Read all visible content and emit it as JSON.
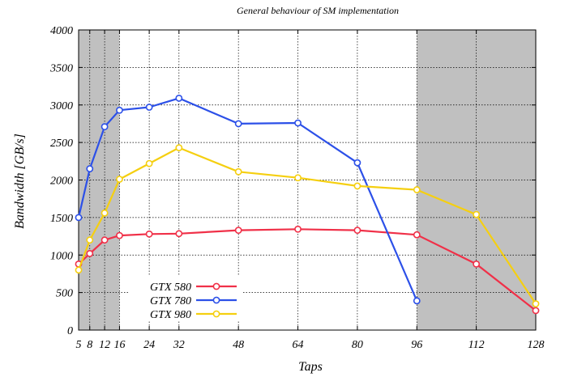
{
  "chart_data": {
    "type": "line",
    "title": "General behaviour of SM implementation",
    "xlabel": "Taps",
    "ylabel": "Bandwidth [GB/s]",
    "xlim": [
      5,
      128
    ],
    "ylim": [
      0,
      4000
    ],
    "xticks": [
      5,
      8,
      12,
      16,
      24,
      32,
      48,
      64,
      80,
      96,
      112,
      128
    ],
    "yticks": [
      0,
      500,
      1000,
      1500,
      2000,
      2500,
      3000,
      3500,
      4000
    ],
    "grid": true,
    "legend_position": "bottom-left",
    "shaded_regions": [
      [
        5,
        16
      ],
      [
        96,
        128
      ]
    ],
    "series": [
      {
        "name": "GTX 580",
        "color": "#f03048",
        "x": [
          5,
          8,
          12,
          16,
          24,
          32,
          48,
          64,
          80,
          96,
          112,
          128
        ],
        "values": [
          880,
          1020,
          1200,
          1260,
          1280,
          1285,
          1330,
          1345,
          1330,
          1270,
          880,
          260
        ]
      },
      {
        "name": "GTX 780",
        "color": "#2c50e8",
        "x": [
          5,
          8,
          12,
          16,
          24,
          32,
          48,
          64,
          80,
          96
        ],
        "values": [
          1500,
          2150,
          2710,
          2930,
          2970,
          3090,
          2750,
          2760,
          2230,
          390
        ]
      },
      {
        "name": "GTX 980",
        "color": "#f5cf10",
        "x": [
          5,
          8,
          12,
          16,
          24,
          32,
          48,
          64,
          80,
          96,
          112,
          128
        ],
        "values": [
          800,
          1200,
          1560,
          2010,
          2220,
          2430,
          2110,
          2030,
          1920,
          1870,
          1540,
          350
        ]
      }
    ]
  }
}
